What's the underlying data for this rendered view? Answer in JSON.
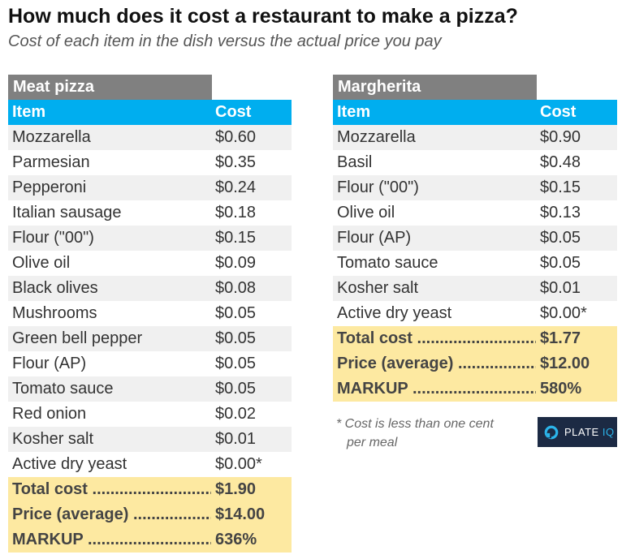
{
  "title": "How much does it cost a restaurant to make a pizza?",
  "subtitle": "Cost of each item in the dish versus the actual price you pay",
  "columns": {
    "item": "Item",
    "cost": "Cost"
  },
  "meat_pizza": {
    "name": "Meat pizza",
    "items": [
      {
        "item": "Mozzarella",
        "cost": "$0.60"
      },
      {
        "item": "Parmesian",
        "cost": "$0.35"
      },
      {
        "item": "Pepperoni",
        "cost": "$0.24"
      },
      {
        "item": "Italian sausage",
        "cost": "$0.18"
      },
      {
        "item": "Flour (\"00\")",
        "cost": "$0.15"
      },
      {
        "item": "Olive oil",
        "cost": "$0.09"
      },
      {
        "item": "Black olives",
        "cost": "$0.08"
      },
      {
        "item": "Mushrooms",
        "cost": "$0.05"
      },
      {
        "item": "Green bell pepper",
        "cost": "$0.05"
      },
      {
        "item": "Flour (AP)",
        "cost": "$0.05"
      },
      {
        "item": "Tomato sauce",
        "cost": "$0.05"
      },
      {
        "item": "Red onion",
        "cost": "$0.02"
      },
      {
        "item": "Kosher salt",
        "cost": "$0.01"
      },
      {
        "item": "Active dry yeast",
        "cost": "$0.00*"
      }
    ],
    "totals": [
      {
        "label": "Total cost",
        "value": "$1.90"
      },
      {
        "label": "Price (average)",
        "value": "$14.00"
      },
      {
        "label": "MARKUP",
        "value": "636%"
      }
    ]
  },
  "margherita": {
    "name": "Margherita",
    "items": [
      {
        "item": "Mozzarella",
        "cost": "$0.90"
      },
      {
        "item": "Basil",
        "cost": "$0.48"
      },
      {
        "item": "Flour (\"00\")",
        "cost": "$0.15"
      },
      {
        "item": "Olive oil",
        "cost": "$0.13"
      },
      {
        "item": "Flour (AP)",
        "cost": "$0.05"
      },
      {
        "item": "Tomato sauce",
        "cost": "$0.05"
      },
      {
        "item": "Kosher salt",
        "cost": "$0.01"
      },
      {
        "item": "Active dry yeast",
        "cost": "$0.00*"
      }
    ],
    "totals": [
      {
        "label": "Total cost",
        "value": "$1.77"
      },
      {
        "label": "Price (average)",
        "value": "$12.00"
      },
      {
        "label": "MARKUP",
        "value": "580%"
      }
    ]
  },
  "footnote": {
    "line1": "* Cost is less than one cent",
    "line2": "per meal"
  },
  "logo": {
    "text": "PLATE",
    "accent": "IQ",
    "icon": "plate-iq-logo-icon"
  }
}
